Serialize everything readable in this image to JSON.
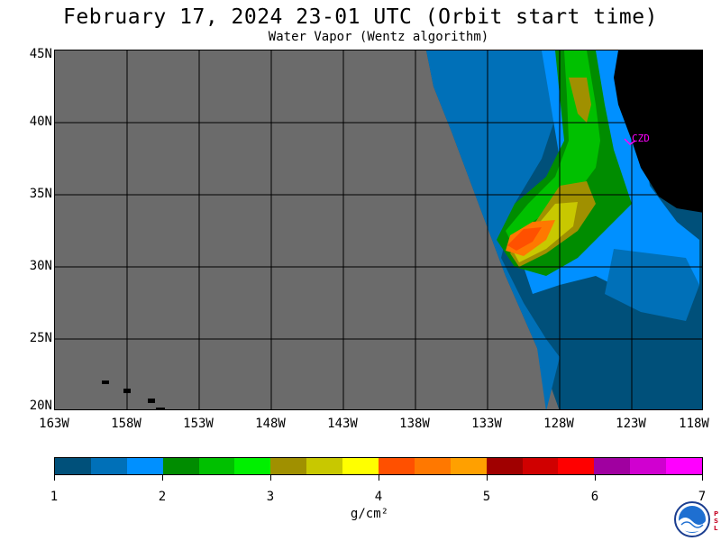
{
  "header": {
    "title": "February 17, 2024  23-01 UTC  (Orbit start time)",
    "subtitle": "Water Vapor (Wentz algorithm)"
  },
  "map": {
    "lat_labels": [
      "45N",
      "40N",
      "35N",
      "30N",
      "25N",
      "20N"
    ],
    "lon_labels": [
      "163W",
      "158W",
      "153W",
      "148W",
      "143W",
      "138W",
      "133W",
      "128W",
      "123W",
      "118W"
    ],
    "station_label": "CZD",
    "colors": {
      "no_data": "#6b6b6b",
      "land": "#000000",
      "grid": "#000000",
      "station": "#ff00ff"
    }
  },
  "colorbar": {
    "ticks": [
      "1",
      "2",
      "3",
      "4",
      "5",
      "6",
      "7"
    ],
    "unit_label": "g/cm²",
    "colors": [
      "#00507a",
      "#0070b8",
      "#0090ff",
      "#008c00",
      "#00c000",
      "#00f000",
      "#a09000",
      "#c8c800",
      "#ffff00",
      "#ff5000",
      "#ff7800",
      "#ffa000",
      "#a00000",
      "#d00000",
      "#ff0000",
      "#a000a0",
      "#d000d0",
      "#ff00ff"
    ]
  },
  "logo": {
    "name": "NOAA",
    "side_text": "PSL"
  }
}
